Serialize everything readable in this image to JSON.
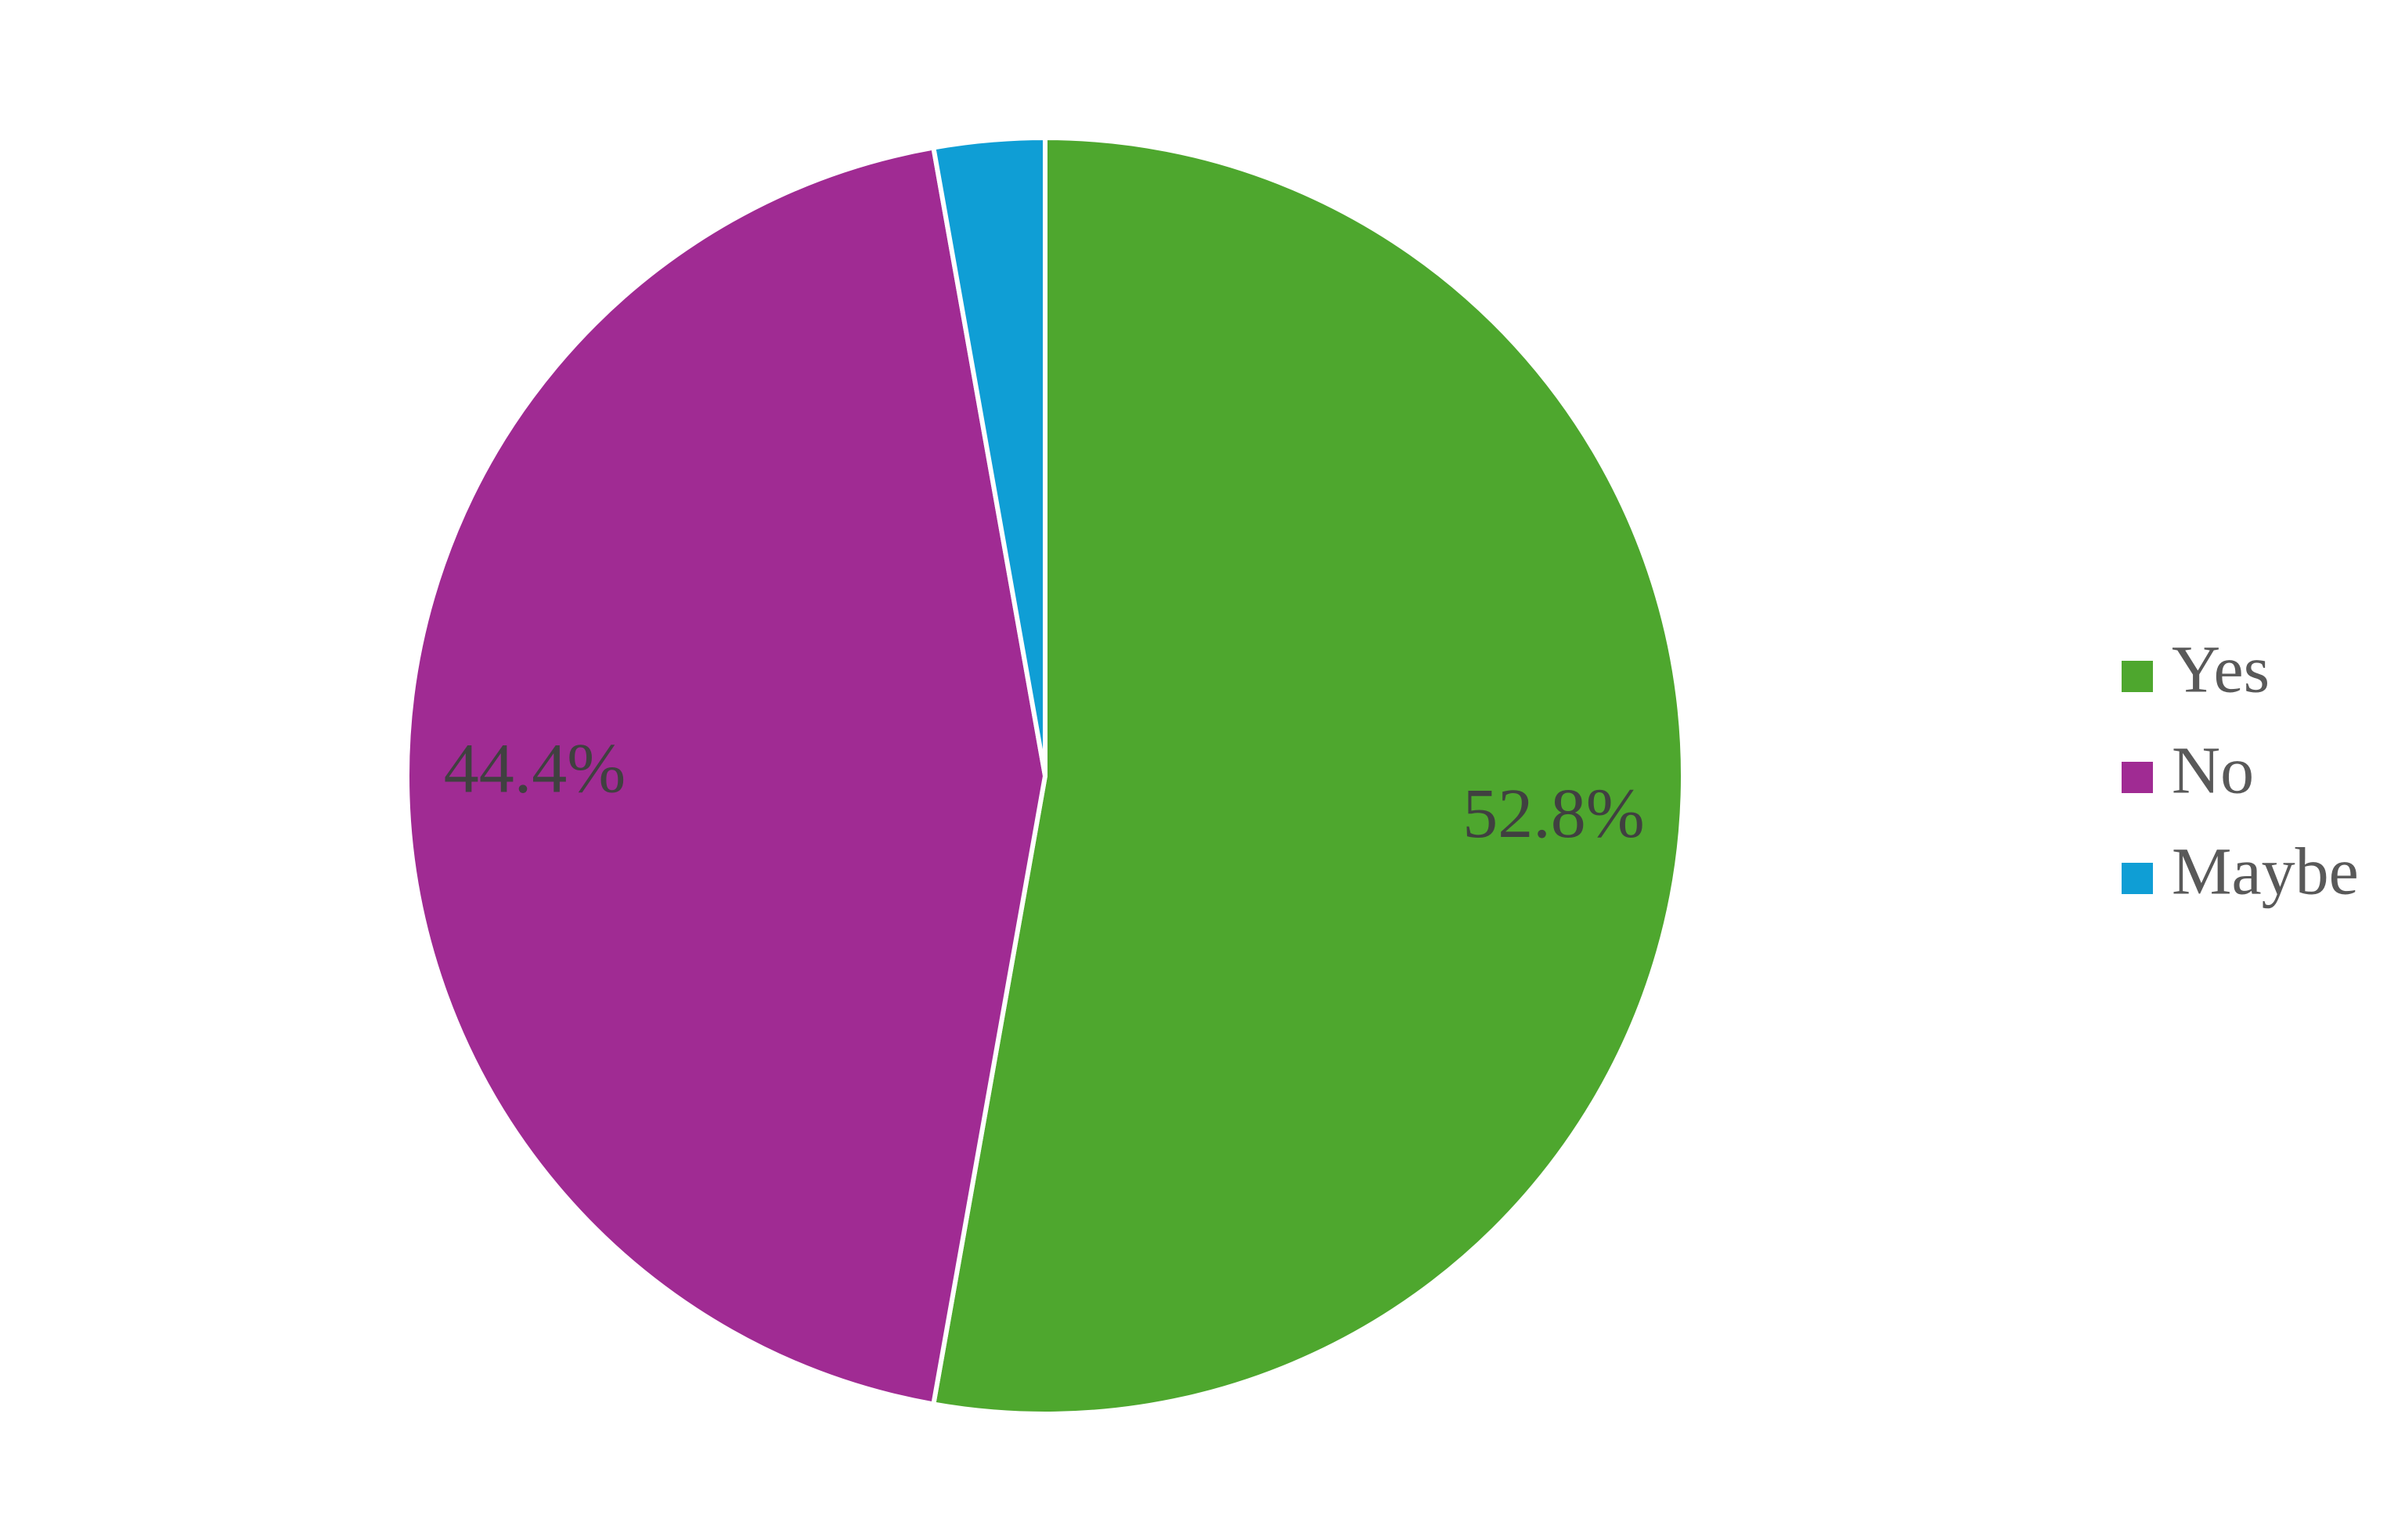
{
  "chart_data": {
    "type": "pie",
    "categories": [
      "Yes",
      "No",
      "Maybe"
    ],
    "values": [
      52.8,
      44.4,
      2.8
    ],
    "value_labels": [
      "52.8%",
      "44.4%",
      null
    ],
    "colors": [
      "#4ea72e",
      "#a02b93",
      "#0f9ed5"
    ],
    "legend": "right"
  }
}
